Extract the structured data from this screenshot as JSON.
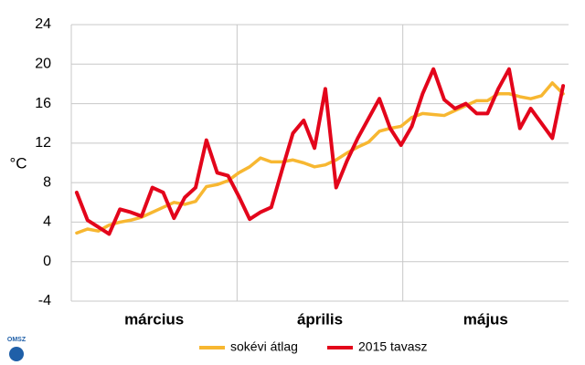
{
  "chart_data": {
    "type": "line",
    "y_label": "°C",
    "month_labels": [
      "március",
      "április",
      "május"
    ],
    "categories": [
      null,
      null,
      null,
      null,
      null,
      null,
      null,
      null,
      null,
      null,
      null,
      null,
      null,
      null,
      null,
      null,
      null,
      null,
      null,
      null,
      null,
      null,
      null,
      null,
      null,
      null,
      null,
      null,
      null,
      null,
      null,
      null,
      null,
      null,
      null,
      null,
      null,
      null,
      null,
      null,
      null,
      null,
      null,
      null,
      null,
      null
    ],
    "series": [
      {
        "name": "sokévi átlag",
        "color": "#f7b731",
        "values": [
          2.9,
          3.3,
          3.1,
          3.7,
          4.0,
          4.2,
          4.5,
          5.0,
          5.5,
          6.0,
          5.8,
          6.1,
          7.6,
          7.8,
          8.2,
          9.0,
          9.6,
          10.5,
          10.1,
          10.1,
          10.3,
          10.0,
          9.6,
          9.8,
          10.3,
          11.0,
          11.6,
          12.1,
          13.2,
          13.5,
          13.7,
          14.6,
          15.0,
          14.9,
          14.8,
          15.3,
          15.8,
          16.3,
          16.3,
          17.0,
          17.0,
          16.7,
          16.5,
          16.8,
          18.1,
          17.0
        ]
      },
      {
        "name": "2015 tavasz",
        "color": "#e3051b",
        "values": [
          7.0,
          4.2,
          3.5,
          2.8,
          5.3,
          5.0,
          4.6,
          7.5,
          7.0,
          4.4,
          6.5,
          7.5,
          12.3,
          9.0,
          8.7,
          6.6,
          4.3,
          5.0,
          5.5,
          9.3,
          13.0,
          14.3,
          11.5,
          17.5,
          7.5,
          10.2,
          12.5,
          14.5,
          16.5,
          13.5,
          11.8,
          13.7,
          17.0,
          19.5,
          16.4,
          15.5,
          16.0,
          15.0,
          15.0,
          17.5,
          19.5,
          13.5,
          15.5,
          14.0,
          12.5,
          17.8
        ]
      }
    ],
    "ylim": [
      -4,
      24
    ],
    "yticks": [
      -4,
      0,
      4,
      8,
      12,
      16,
      20,
      24
    ],
    "grid": true,
    "legend": "bottom",
    "logo_text": "OMSZ"
  }
}
